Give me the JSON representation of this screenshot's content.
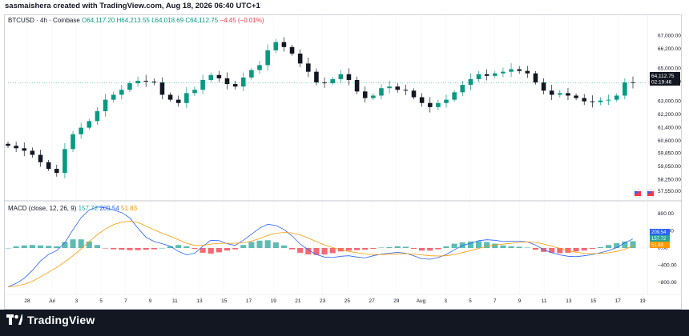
{
  "header": {
    "credit": "sasmaishera created with TradingView.com, Aug 18, 2026 06:40 UTC+1"
  },
  "legend": {
    "symbol": "BTCUSD · 4h · Coinbase",
    "open": "O64,117.20",
    "high": "H64,213.55",
    "low": "L64,018.69",
    "close": "C64,112.75",
    "change": "−4.45 (−0.01%)"
  },
  "macd_legend": {
    "label": "MACD (close, 12, 26, 9)",
    "hist": "157.72",
    "macd": "209.54",
    "signal": "51.83"
  },
  "price_tag": {
    "price": "64,112.75",
    "countdown": "02:19:46"
  },
  "macd_tags": {
    "macd": "209.54",
    "hist": "157.72",
    "signal": "51.83"
  },
  "footer": {
    "brand": "TradingView"
  },
  "colors": {
    "up": "#089981",
    "down": "#131722",
    "macd": "#2962ff",
    "signal": "#ff9800",
    "hist_pos": "#26a69a",
    "hist_neg": "#f23645"
  },
  "chart_data": [
    {
      "type": "line",
      "title": "BTCUSD · 4h · Coinbase",
      "xlabel": "",
      "ylabel": "",
      "x_ticks": [
        "28",
        "Jul",
        "3",
        "5",
        "7",
        "9",
        "11",
        "13",
        "15",
        "17",
        "19",
        "21",
        "23",
        "25",
        "27",
        "29",
        "Aug",
        "3",
        "5",
        "7",
        "9",
        "11",
        "13",
        "15",
        "17",
        "19"
      ],
      "y_ticks": [
        67000,
        66200,
        65000,
        64200,
        63000,
        62200,
        61400,
        60600,
        59850,
        59050,
        58250,
        57550
      ],
      "y_tick_labels": [
        "67,000.00",
        "66,200.00",
        "65,000.00",
        "64,200.00",
        "63,000.00",
        "62,200.00",
        "61,400.00",
        "60,600.00",
        "59,850.00",
        "59,050.00",
        "58,250.00",
        "57,550.00"
      ],
      "ylim": [
        57200,
        67700
      ],
      "series": [
        {
          "values": [
            60300,
            60150,
            60000,
            59750,
            59300,
            58900,
            58650,
            60100,
            61000,
            61400,
            61800,
            62400,
            63100,
            63400,
            63700,
            64100,
            64250,
            64200,
            64150,
            63400,
            63100,
            62900,
            63500,
            63700,
            64300,
            64600,
            64400,
            64050,
            63900,
            64450,
            64900,
            65200,
            66100,
            66600,
            66300,
            65900,
            65300,
            64800,
            64150,
            64100,
            64350,
            64650,
            64300,
            63600,
            63200,
            63350,
            63800,
            63900,
            63700,
            63650,
            63250,
            62900,
            62650,
            62900,
            63100,
            63550,
            64000,
            64350,
            64650,
            64550,
            64700,
            64800,
            64950,
            64850,
            64700,
            64150,
            63650,
            63400,
            63500,
            63350,
            63200,
            63000,
            62950,
            63050,
            63100,
            63350,
            64150,
            64112.75
          ]
        }
      ]
    },
    {
      "type": "bar",
      "title": "MACD (close, 12, 26, 9)",
      "y_ticks": [
        800,
        400,
        0,
        -400,
        -800
      ],
      "y_tick_labels": [
        "800.00",
        "400.00",
        "0.00",
        "−400.00",
        "−800.00"
      ],
      "ylim": [
        -1000,
        1000
      ],
      "series": [
        {
          "name": "MACD",
          "values": [
            -900,
            -820,
            -700,
            -520,
            -300,
            -150,
            -60,
            120,
            420,
            700,
            880,
            950,
            930,
            880,
            820,
            700,
            460,
            250,
            150,
            100,
            40,
            -80,
            -160,
            -120,
            40,
            180,
            170,
            100,
            60,
            180,
            320,
            460,
            550,
            520,
            430,
            280,
            90,
            -40,
            -150,
            -210,
            -220,
            -190,
            -180,
            -210,
            -230,
            -180,
            -140,
            -120,
            -100,
            -120,
            -180,
            -250,
            -260,
            -220,
            -150,
            -40,
            60,
            110,
            170,
            190,
            180,
            150,
            160,
            160,
            140,
            70,
            -40,
            -110,
            -160,
            -190,
            -200,
            -180,
            -150,
            -110,
            -60,
            10,
            120,
            209.54
          ]
        },
        {
          "name": "Signal",
          "values": [
            -900,
            -880,
            -840,
            -770,
            -670,
            -560,
            -450,
            -320,
            -180,
            -20,
            150,
            310,
            440,
            540,
            600,
            620,
            590,
            510,
            420,
            340,
            270,
            190,
            110,
            60,
            60,
            90,
            110,
            110,
            110,
            120,
            160,
            220,
            290,
            340,
            360,
            350,
            300,
            230,
            150,
            70,
            10,
            -40,
            -80,
            -110,
            -140,
            -150,
            -150,
            -145,
            -135,
            -130,
            -140,
            -160,
            -180,
            -185,
            -180,
            -150,
            -105,
            -60,
            -10,
            40,
            70,
            90,
            110,
            130,
            140,
            130,
            90,
            40,
            -10,
            -60,
            -100,
            -120,
            -130,
            -125,
            -110,
            -80,
            -30,
            51.83
          ]
        },
        {
          "name": "Histogram",
          "values": [
            0,
            40,
            60,
            70,
            60,
            50,
            40,
            140,
            200,
            200,
            150,
            70,
            -10,
            -30,
            -40,
            -50,
            -50,
            -40,
            -30,
            0,
            40,
            70,
            40,
            -20,
            -110,
            -130,
            -100,
            -60,
            -30,
            70,
            140,
            170,
            180,
            130,
            60,
            -30,
            -110,
            -150,
            -160,
            -150,
            -120,
            -80,
            -60,
            -50,
            -40,
            -20,
            10,
            20,
            40,
            30,
            -20,
            -60,
            -60,
            -30,
            40,
            100,
            130,
            150,
            160,
            140,
            100,
            60,
            40,
            30,
            10,
            -40,
            -90,
            -110,
            -120,
            -110,
            -80,
            -60,
            -20,
            20,
            70,
            110,
            150,
            157.72
          ]
        }
      ]
    }
  ]
}
